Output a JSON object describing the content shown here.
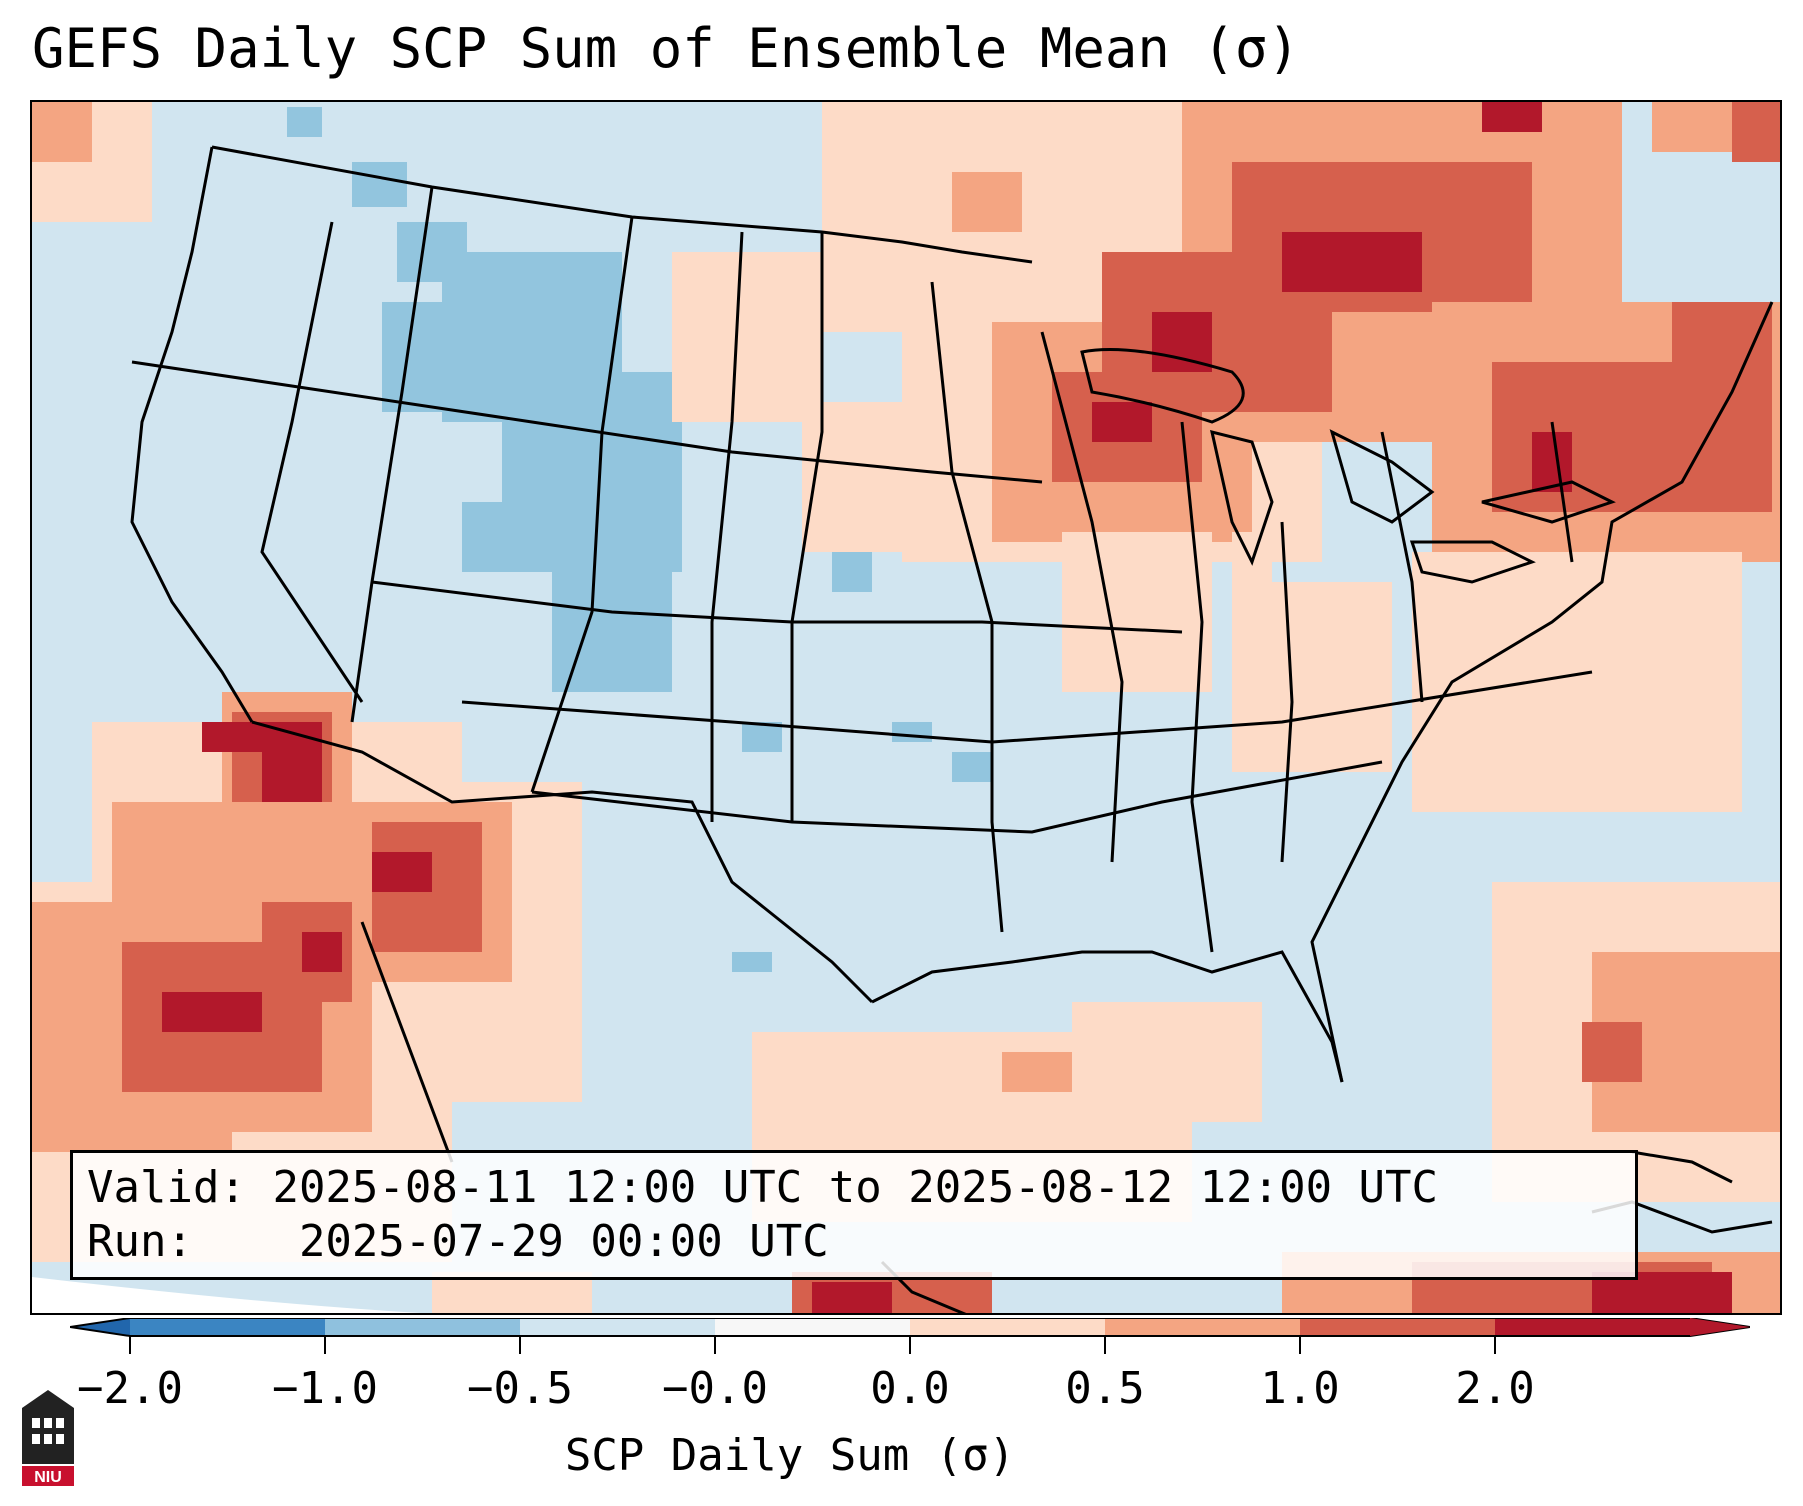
{
  "title": "GEFS Daily SCP Sum of Ensemble Mean (σ)",
  "info": {
    "valid_label": "Valid:",
    "valid_value": "2025-08-11 12:00 UTC to 2025-08-12 12:00 UTC",
    "run_label": "Run:",
    "run_value": "2025-07-29 00:00 UTC"
  },
  "colorbar": {
    "label": "SCP Daily Sum (σ)",
    "ticks": [
      "−2.0",
      "−1.0",
      "−0.5",
      "−0.0",
      "0.0",
      "0.5",
      "1.0",
      "2.0"
    ],
    "colors": [
      "#3b85c2",
      "#8fc1de",
      "#d1e5f0",
      "#f7f7f7",
      "#fddbc7",
      "#f4a582",
      "#d6604d",
      "#b2182b"
    ],
    "extend_colors": {
      "low": "#2166ac",
      "high": "#b2182b"
    }
  },
  "map": {
    "projection": "Lambert Conformal, CONUS",
    "background_color": "#d1e5f0",
    "anomaly_regions": [
      {
        "name": "Upper Midwest / Great Lakes",
        "level": "positive"
      },
      {
        "name": "Northeast US / New England",
        "level": "positive"
      },
      {
        "name": "Desert Southwest / Baja",
        "level": "strong positive"
      },
      {
        "name": "Northern Rockies / Wyoming",
        "level": "negative"
      },
      {
        "name": "Western Gulf of Mexico",
        "level": "positive"
      }
    ]
  },
  "logo": {
    "text": "NIU"
  }
}
